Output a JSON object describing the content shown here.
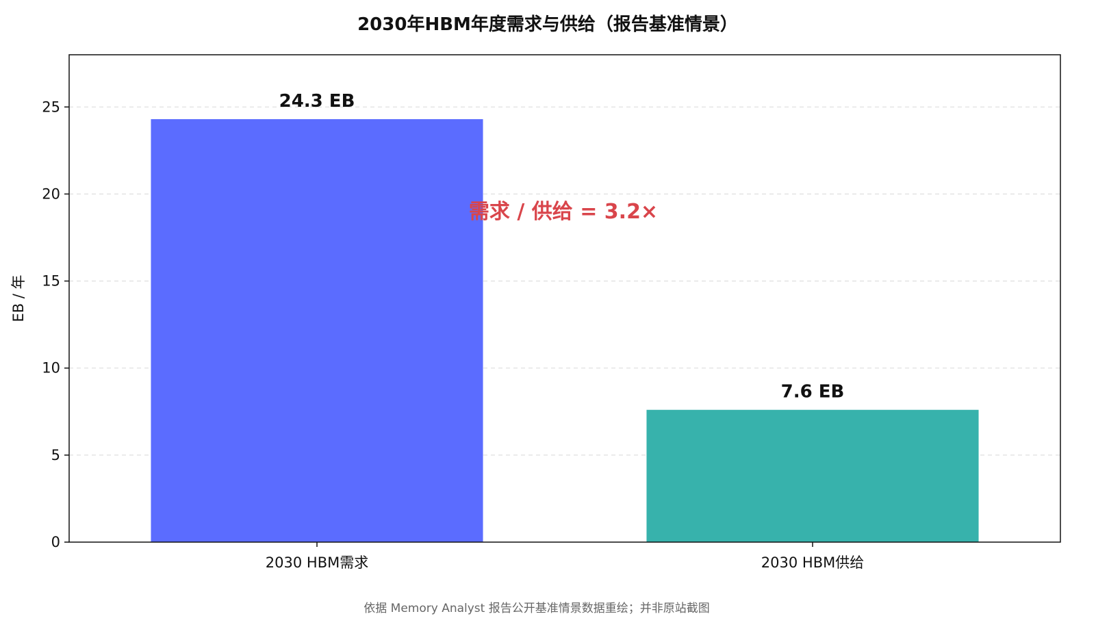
{
  "chart_data": {
    "type": "bar",
    "title": "2030年HBM年度需求与供给（报告基准情景）",
    "xlabel": "",
    "ylabel": "EB / 年",
    "categories": [
      "2030 HBM需求",
      "2030 HBM供给"
    ],
    "values": [
      24.3,
      7.6
    ],
    "value_labels": [
      "24.3 EB",
      "7.6 EB"
    ],
    "bar_colors": [
      "#5b6cff",
      "#37b2ac"
    ],
    "ylim": [
      0,
      28
    ],
    "yticks": [
      0,
      5,
      10,
      15,
      20,
      25
    ],
    "ytick_labels": [
      "0",
      "5",
      "10",
      "15",
      "20",
      "25"
    ],
    "grid": true,
    "annotation": {
      "text": "需求 / 供给 = 3.2×",
      "color": "#d9454b"
    },
    "footer": "依据 Memory Analyst 报告公开基准情景数据重绘；并非原站截图"
  }
}
